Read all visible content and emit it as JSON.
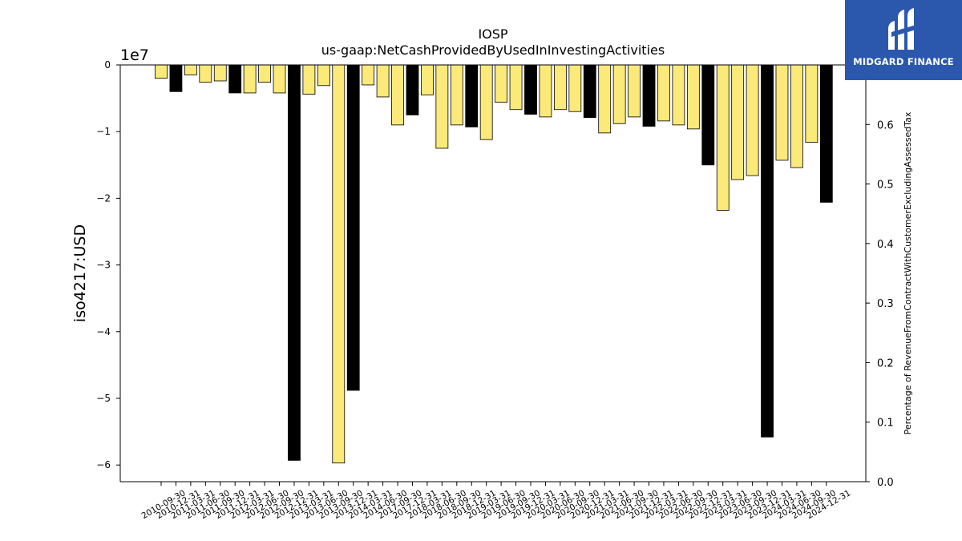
{
  "chart_data": {
    "type": "bar",
    "title": "IOSP",
    "subtitle": "us-gaap:NetCashProvidedByUsedInInvestingActivities",
    "ylabel": "iso4217:USD",
    "y2label": "Percentage of RevenueFromContractWithCustomerExcludingAssessedTax",
    "y_offset_label": "1e7",
    "ylim": [
      -6.25,
      0
    ],
    "y_ticks": [
      0,
      -1,
      -2,
      -3,
      -4,
      -5,
      -6
    ],
    "y2lim": [
      0,
      0.7
    ],
    "y2_ticks": [
      "0.0",
      "0.1",
      "0.2",
      "0.3",
      "0.4",
      "0.5",
      "0.6"
    ],
    "x_tick_labels": [
      "2010-09-30",
      "2010-12-31",
      "2011-03-31",
      "2011-06-30",
      "2011-09-30",
      "2011-12-31",
      "2012-03-31",
      "2012-06-30",
      "2012-09-30",
      "2012-12-31",
      "2013-03-31",
      "2013-06-30",
      "2013-09-30",
      "2013-12-31",
      "2014-03-31",
      "2014-06-30",
      "2017-09-30",
      "2017-12-31",
      "2018-03-31",
      "2018-06-30",
      "2018-09-30",
      "2018-12-31",
      "2019-03-31",
      "2019-06-30",
      "2019-09-30",
      "2019-12-31",
      "2020-03-31",
      "2020-06-30",
      "2020-09-30",
      "2020-12-31",
      "2021-03-31",
      "2021-06-30",
      "2021-09-30",
      "2021-12-31",
      "2022-03-31",
      "2022-06-30",
      "2022-09-30",
      "2022-12-31",
      "2023-03-31",
      "2023-06-30",
      "2023-09-30",
      "2023-12-31",
      "2024-03-31",
      "2024-06-30",
      "2024-09-30",
      "2024-12-31"
    ],
    "values": [
      -0.2,
      -0.4,
      -0.15,
      -0.26,
      -0.24,
      -0.42,
      -0.42,
      -0.26,
      -0.42,
      -5.93,
      -0.44,
      -0.31,
      -5.97,
      -4.88,
      -0.3,
      -0.48,
      -0.9,
      -0.75,
      -0.45,
      -1.25,
      -0.9,
      -0.93,
      -1.12,
      -0.56,
      -0.67,
      -0.74,
      -0.78,
      -0.67,
      -0.7,
      -0.79,
      -1.02,
      -0.88,
      -0.78,
      -0.92,
      -0.84,
      -0.9,
      -0.96,
      -1.5,
      -2.18,
      -1.72,
      -1.66,
      -5.58,
      -1.43,
      -1.54,
      -1.16,
      -2.06
    ],
    "bar_colors": [
      "#fbe97a",
      "#000000",
      "#fbe97a",
      "#fbe97a",
      "#fbe97a",
      "#000000",
      "#fbe97a",
      "#fbe97a",
      "#fbe97a",
      "#000000",
      "#fbe97a",
      "#fbe97a",
      "#fbe97a",
      "#000000",
      "#fbe97a",
      "#fbe97a",
      "#fbe97a",
      "#000000",
      "#fbe97a",
      "#fbe97a",
      "#fbe97a",
      "#000000",
      "#fbe97a",
      "#fbe97a",
      "#fbe97a",
      "#000000",
      "#fbe97a",
      "#fbe97a",
      "#fbe97a",
      "#000000",
      "#fbe97a",
      "#fbe97a",
      "#fbe97a",
      "#000000",
      "#fbe97a",
      "#fbe97a",
      "#fbe97a",
      "#000000",
      "#fbe97a",
      "#fbe97a",
      "#fbe97a",
      "#000000",
      "#fbe97a",
      "#fbe97a",
      "#fbe97a",
      "#000000"
    ],
    "grid": false
  },
  "logo": {
    "text": "MIDGARD FINANCE",
    "background": "#2b58ad"
  }
}
